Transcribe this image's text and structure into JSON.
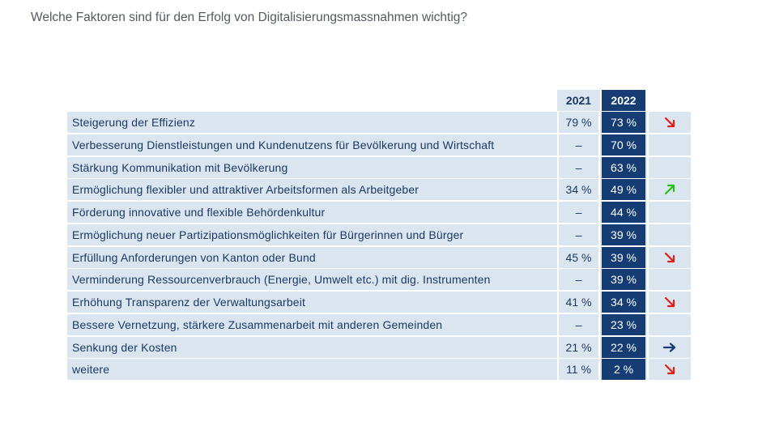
{
  "title": "Welche Faktoren sind für den Erfolg von Digitalisierungsmassnahmen wichtig?",
  "colors": {
    "dark": "#163d73",
    "light": "#dbe5ef",
    "down": "#e0201b",
    "up": "#22c414",
    "flat": "#163d73"
  },
  "chart_data": {
    "type": "table",
    "title": "Welche Faktoren sind für den Erfolg von Digitalisierungsmassnahmen wichtig?",
    "columns": [
      "2021",
      "2022"
    ],
    "rows": [
      {
        "label": "Steigerung der Effizienz",
        "v2021": "79 %",
        "v2022": "73 %",
        "trend": "down"
      },
      {
        "label": "Verbesserung Dienstleistungen und Kundenutzens für Bevölkerung und Wirtschaft",
        "v2021": "–",
        "v2022": "70 %",
        "trend": ""
      },
      {
        "label": "Stärkung Kommunikation mit Bevölkerung",
        "v2021": "–",
        "v2022": "63 %",
        "trend": ""
      },
      {
        "label": "Ermöglichung flexibler und attraktiver Arbeitsformen als Arbeitgeber",
        "v2021": "34 %",
        "v2022": "49 %",
        "trend": "up"
      },
      {
        "label": "Förderung innovative und flexible Behördenkultur",
        "v2021": "–",
        "v2022": "44 %",
        "trend": ""
      },
      {
        "label": "Ermöglichung neuer Partizipationsmöglichkeiten für Bürgerinnen und Bürger",
        "v2021": "–",
        "v2022": "39 %",
        "trend": ""
      },
      {
        "label": "Erfüllung Anforderungen von Kanton oder Bund",
        "v2021": "45 %",
        "v2022": "39 %",
        "trend": "down"
      },
      {
        "label": "Verminderung Ressourcenverbrauch (Energie, Umwelt etc.) mit dig. Instrumenten",
        "v2021": "–",
        "v2022": "39 %",
        "trend": ""
      },
      {
        "label": "Erhöhung Transparenz der Verwaltungsarbeit",
        "v2021": "41 %",
        "v2022": "34 %",
        "trend": "down"
      },
      {
        "label": "Bessere Vernetzung, stärkere Zusammenarbeit mit anderen Gemeinden",
        "v2021": "–",
        "v2022": "23 %",
        "trend": ""
      },
      {
        "label": "Senkung der Kosten",
        "v2021": "21 %",
        "v2022": "22 %",
        "trend": "flat"
      },
      {
        "label": "weitere",
        "v2021": "11 %",
        "v2022": "2 %",
        "trend": "down"
      }
    ]
  }
}
